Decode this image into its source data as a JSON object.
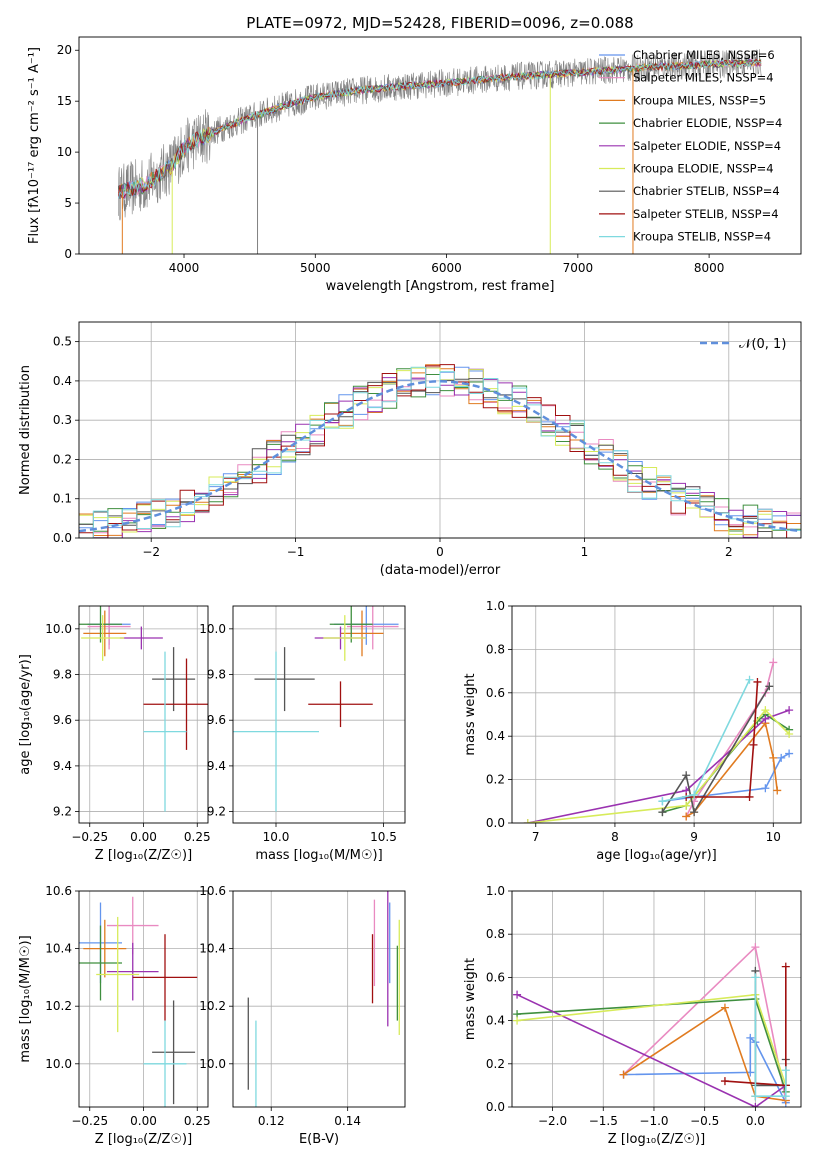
{
  "colors": {
    "chabrier_miles": "#6495ed",
    "salpeter_miles": "#e98ac1",
    "kroupa_miles": "#e07b20",
    "chabrier_elodie": "#3f8f3f",
    "salpeter_elodie": "#9a32b0",
    "kroupa_elodie": "#d7eb5a",
    "chabrier_stelib": "#555555",
    "salpeter_stelib": "#a01010",
    "kroupa_stelib": "#7fd9df",
    "data": "#808080",
    "gaussian": "#5f8fdc",
    "grid": "#b0b0b0"
  },
  "chart_data": [
    {
      "type": "line",
      "title": "PLATE=0972, MJD=52428, FIBERID=0096, z=0.088",
      "xlabel": "wavelength [Angstrom, rest frame]",
      "ylabel": "Flux [fλ10⁻¹⁷ erg cm⁻² s⁻¹ A⁻¹]",
      "xlim": [
        3200,
        8700
      ],
      "ylim": [
        0,
        21.3
      ],
      "xticks": [
        "4000",
        "5000",
        "6000",
        "7000",
        "8000"
      ],
      "yticks": [
        "0",
        "5",
        "10",
        "15",
        "20"
      ],
      "grid": false,
      "legend_position": "top-right",
      "series": [
        {
          "name": "Chabrier MILES, NSSP=6",
          "key": "chabrier_miles"
        },
        {
          "name": "Salpeter MILES, NSSP=4",
          "key": "salpeter_miles"
        },
        {
          "name": "Kroupa MILES, NSSP=5",
          "key": "kroupa_miles"
        },
        {
          "name": "Chabrier ELODIE, NSSP=4",
          "key": "chabrier_elodie"
        },
        {
          "name": "Salpeter ELODIE, NSSP=4",
          "key": "salpeter_elodie"
        },
        {
          "name": "Kroupa ELODIE, NSSP=4",
          "key": "kroupa_elodie"
        },
        {
          "name": "Chabrier STELIB, NSSP=4",
          "key": "chabrier_stelib"
        },
        {
          "name": "Salpeter STELIB, NSSP=4",
          "key": "salpeter_stelib"
        },
        {
          "name": "Kroupa STELIB, NSSP=4",
          "key": "kroupa_stelib"
        }
      ],
      "continuum": {
        "x": [
          3500,
          3700,
          3900,
          4000,
          4100,
          4300,
          4500,
          4800,
          5000,
          5300,
          5600,
          6000,
          6500,
          7000,
          7500,
          8000,
          8400
        ],
        "y": [
          6.0,
          6.8,
          8.6,
          10.4,
          11.2,
          12.4,
          13.4,
          14.7,
          15.4,
          16.0,
          16.4,
          16.8,
          17.4,
          17.8,
          18.3,
          18.6,
          18.8
        ]
      },
      "spikes": [
        {
          "x": 3530,
          "y": 0,
          "key": "kroupa_miles"
        },
        {
          "x": 3910,
          "y": 0,
          "key": "kroupa_elodie"
        },
        {
          "x": 4560,
          "y": 0,
          "key": "data"
        },
        {
          "x": 6790,
          "y": 0,
          "key": "kroupa_elodie"
        },
        {
          "x": 7420,
          "y": 0,
          "key": "kroupa_miles"
        }
      ]
    },
    {
      "type": "line",
      "xlabel": "(data-model)/error",
      "ylabel": "Normed distribution",
      "xlim": [
        -2.5,
        2.5
      ],
      "ylim": [
        0,
        0.55
      ],
      "xticks": [
        "−2",
        "−1",
        "0",
        "1",
        "2"
      ],
      "yticks": [
        "0.0",
        "0.1",
        "0.2",
        "0.3",
        "0.4",
        "0.5"
      ],
      "grid": true,
      "legend_position": "top-right",
      "legend_label": "𝒩(0, 1)",
      "gaussian": {
        "mean": 0,
        "sigma": 1
      },
      "bin_width": 0.1
    },
    {
      "type": "scatter",
      "xlabel": "Z [log₁₀(Z/Z☉)]",
      "ylabel": "age  [log₁₀(age/yr)]",
      "xlim": [
        -0.3,
        0.3
      ],
      "ylim": [
        9.15,
        10.1
      ],
      "xticks": [
        "−0.25",
        "0.00",
        "0.25"
      ],
      "yticks": [
        "9.2",
        "9.4",
        "9.6",
        "9.8",
        "10.0"
      ],
      "grid": true,
      "points": [
        {
          "key": "chabrier_miles",
          "x": -0.16,
          "y": 10.02,
          "xerr": 0.1,
          "yerr": 0.09
        },
        {
          "key": "salpeter_miles",
          "x": -0.16,
          "y": 10.01,
          "xerr": 0.1,
          "yerr": 0.1
        },
        {
          "key": "kroupa_miles",
          "x": -0.18,
          "y": 9.98,
          "xerr": 0.1,
          "yerr": 0.1
        },
        {
          "key": "chabrier_elodie",
          "x": -0.2,
          "y": 10.02,
          "xerr": 0.1,
          "yerr": 0.08
        },
        {
          "key": "salpeter_elodie",
          "x": -0.01,
          "y": 9.96,
          "xerr": 0.1,
          "yerr": 0.05
        },
        {
          "key": "kroupa_elodie",
          "x": -0.19,
          "y": 9.96,
          "xerr": 0.1,
          "yerr": 0.1
        },
        {
          "key": "chabrier_stelib",
          "x": 0.14,
          "y": 9.78,
          "xerr": 0.1,
          "yerr": 0.14
        },
        {
          "key": "salpeter_stelib",
          "x": 0.2,
          "y": 9.67,
          "xerr": 0.2,
          "yerr": 0.2
        },
        {
          "key": "kroupa_stelib",
          "x": 0.1,
          "y": 9.55,
          "xerr": 0.1,
          "yerr": 0.35
        }
      ]
    },
    {
      "type": "scatter",
      "xlabel": "mass [log₁₀(M/M☉)]",
      "xlim": [
        9.8,
        10.6
      ],
      "ylim": [
        9.15,
        10.1
      ],
      "xticks": [
        "10.0",
        "10.5"
      ],
      "yticks": [
        "9.2",
        "9.4",
        "9.6",
        "9.8",
        "10.0"
      ],
      "grid": true,
      "points": [
        {
          "key": "chabrier_miles",
          "x": 10.42,
          "y": 10.02,
          "xerr": 0.15,
          "yerr": 0.09
        },
        {
          "key": "salpeter_miles",
          "x": 10.45,
          "y": 10.01,
          "xerr": 0.12,
          "yerr": 0.1
        },
        {
          "key": "kroupa_miles",
          "x": 10.4,
          "y": 9.98,
          "xerr": 0.1,
          "yerr": 0.1
        },
        {
          "key": "chabrier_elodie",
          "x": 10.35,
          "y": 10.02,
          "xerr": 0.1,
          "yerr": 0.08
        },
        {
          "key": "salpeter_elodie",
          "x": 10.3,
          "y": 9.96,
          "xerr": 0.12,
          "yerr": 0.05
        },
        {
          "key": "kroupa_elodie",
          "x": 10.32,
          "y": 9.96,
          "xerr": 0.1,
          "yerr": 0.1
        },
        {
          "key": "chabrier_stelib",
          "x": 10.04,
          "y": 9.78,
          "xerr": 0.14,
          "yerr": 0.14
        },
        {
          "key": "salpeter_stelib",
          "x": 10.3,
          "y": 9.67,
          "xerr": 0.15,
          "yerr": 0.1
        },
        {
          "key": "kroupa_stelib",
          "x": 10.0,
          "y": 9.55,
          "xerr": 0.2,
          "yerr": 0.35
        }
      ]
    },
    {
      "type": "line",
      "xlabel": "age  [log₁₀(age/yr)]",
      "ylabel": "mass weight",
      "xlim": [
        6.7,
        10.35
      ],
      "ylim": [
        0,
        1.0
      ],
      "xticks": [
        "7",
        "8",
        "9",
        "10"
      ],
      "yticks": [
        "0.0",
        "0.2",
        "0.4",
        "0.6",
        "0.8",
        "1.0"
      ],
      "grid": true,
      "series": [
        {
          "key": "chabrier_miles",
          "x": [
            8.6,
            9.0,
            9.9,
            10.1,
            10.2
          ],
          "y": [
            0.1,
            0.12,
            0.16,
            0.3,
            0.32
          ]
        },
        {
          "key": "salpeter_miles",
          "x": [
            8.9,
            9.0,
            9.9,
            10.0
          ],
          "y": [
            0.03,
            0.1,
            0.6,
            0.74
          ]
        },
        {
          "key": "kroupa_miles",
          "x": [
            8.9,
            9.0,
            9.9,
            10.0,
            10.05
          ],
          "y": [
            0.03,
            0.05,
            0.46,
            0.3,
            0.15
          ]
        },
        {
          "key": "chabrier_elodie",
          "x": [
            8.6,
            8.9,
            9.8,
            9.9,
            10.2
          ],
          "y": [
            0.05,
            0.08,
            0.47,
            0.5,
            0.43
          ]
        },
        {
          "key": "salpeter_elodie",
          "x": [
            6.9,
            8.9,
            9.9,
            10.2
          ],
          "y": [
            0.0,
            0.15,
            0.48,
            0.52
          ]
        },
        {
          "key": "kroupa_elodie",
          "x": [
            6.9,
            8.9,
            9.9,
            10.2
          ],
          "y": [
            0.0,
            0.08,
            0.52,
            0.41
          ]
        },
        {
          "key": "chabrier_stelib",
          "x": [
            8.6,
            8.9,
            9.0,
            9.95
          ],
          "y": [
            0.05,
            0.22,
            0.05,
            0.63
          ]
        },
        {
          "key": "salpeter_stelib",
          "x": [
            8.9,
            9.7,
            9.75,
            9.8
          ],
          "y": [
            0.12,
            0.12,
            0.36,
            0.65
          ]
        },
        {
          "key": "kroupa_stelib",
          "x": [
            8.6,
            9.0,
            9.7
          ],
          "y": [
            0.1,
            0.13,
            0.66
          ]
        }
      ]
    },
    {
      "type": "scatter",
      "xlabel": "Z [log₁₀(Z/Z☉)]",
      "ylabel": "mass [log₁₀(M/M☉)]",
      "xlim": [
        -0.3,
        0.3
      ],
      "ylim": [
        9.85,
        10.6
      ],
      "xticks": [
        "−0.25",
        "0.00",
        "0.25"
      ],
      "yticks": [
        "10.0",
        "10.2",
        "10.4",
        "10.6"
      ],
      "grid": true,
      "points": [
        {
          "key": "chabrier_miles",
          "x": -0.2,
          "y": 10.42,
          "xerr": 0.1,
          "yerr": 0.14
        },
        {
          "key": "salpeter_miles",
          "x": -0.05,
          "y": 10.48,
          "xerr": 0.12,
          "yerr": 0.1
        },
        {
          "key": "kroupa_miles",
          "x": -0.18,
          "y": 10.4,
          "xerr": 0.1,
          "yerr": 0.1
        },
        {
          "key": "chabrier_elodie",
          "x": -0.2,
          "y": 10.35,
          "xerr": 0.1,
          "yerr": 0.13
        },
        {
          "key": "salpeter_elodie",
          "x": -0.05,
          "y": 10.32,
          "xerr": 0.12,
          "yerr": 0.1
        },
        {
          "key": "kroupa_elodie",
          "x": -0.12,
          "y": 10.31,
          "xerr": 0.1,
          "yerr": 0.2
        },
        {
          "key": "chabrier_stelib",
          "x": 0.14,
          "y": 10.04,
          "xerr": 0.1,
          "yerr": 0.18
        },
        {
          "key": "salpeter_stelib",
          "x": 0.1,
          "y": 10.3,
          "xerr": 0.15,
          "yerr": 0.15
        },
        {
          "key": "kroupa_stelib",
          "x": 0.1,
          "y": 10.0,
          "xerr": 0.1,
          "yerr": 0.15
        }
      ]
    },
    {
      "type": "scatter",
      "xlabel": "E(B-V)",
      "xlim": [
        0.11,
        0.155
      ],
      "ylim": [
        9.85,
        10.6
      ],
      "xticks": [
        "0.12",
        "0.14"
      ],
      "yticks": [
        "10.0",
        "10.2",
        "10.4",
        "10.6"
      ],
      "grid": true,
      "points": [
        {
          "key": "chabrier_stelib",
          "x": 0.114,
          "y": 10.07,
          "yerr": 0.16
        },
        {
          "key": "kroupa_stelib",
          "x": 0.116,
          "y": 10.0,
          "yerr": 0.15
        },
        {
          "key": "salpeter_stelib",
          "x": 0.1465,
          "y": 10.33,
          "yerr": 0.12
        },
        {
          "key": "salpeter_miles",
          "x": 0.147,
          "y": 10.42,
          "yerr": 0.15
        },
        {
          "key": "salpeter_elodie",
          "x": 0.1505,
          "y": 10.37,
          "yerr": 0.24
        },
        {
          "key": "chabrier_miles",
          "x": 0.151,
          "y": 10.42,
          "yerr": 0.14
        },
        {
          "key": "chabrier_elodie",
          "x": 0.153,
          "y": 10.28,
          "yerr": 0.13
        },
        {
          "key": "kroupa_elodie",
          "x": 0.1535,
          "y": 10.3,
          "yerr": 0.2
        }
      ]
    },
    {
      "type": "line",
      "xlabel": "Z [log₁₀(Z/Z☉)]",
      "ylabel": "mass weight",
      "xlim": [
        -2.4,
        0.45
      ],
      "ylim": [
        0,
        1.0
      ],
      "xticks": [
        "−2.0",
        "−1.5",
        "−1.0",
        "−0.5",
        "0.0"
      ],
      "yticks": [
        "0.0",
        "0.2",
        "0.4",
        "0.6",
        "0.8",
        "1.0"
      ],
      "grid": true,
      "series": [
        {
          "key": "chabrier_miles",
          "x": [
            -1.3,
            -0.05,
            -0.05,
            0.0,
            0.3
          ],
          "y": [
            0.15,
            0.16,
            0.32,
            0.3,
            0.02
          ]
        },
        {
          "key": "salpeter_miles",
          "x": [
            -1.3,
            0.0,
            0.3
          ],
          "y": [
            0.15,
            0.74,
            0.03
          ]
        },
        {
          "key": "kroupa_miles",
          "x": [
            -1.3,
            -0.3,
            0.0,
            0.3
          ],
          "y": [
            0.15,
            0.46,
            0.05,
            0.03
          ]
        },
        {
          "key": "chabrier_elodie",
          "x": [
            -2.35,
            0.0,
            0.3
          ],
          "y": [
            0.43,
            0.5,
            0.07
          ]
        },
        {
          "key": "salpeter_elodie",
          "x": [
            -2.35,
            0.0,
            0.3
          ],
          "y": [
            0.52,
            0.0,
            0.1
          ]
        },
        {
          "key": "kroupa_elodie",
          "x": [
            -2.35,
            0.0,
            0.3
          ],
          "y": [
            0.4,
            0.52,
            0.1
          ]
        },
        {
          "key": "chabrier_stelib",
          "x": [
            0.0,
            0.0,
            0.3,
            0.3
          ],
          "y": [
            0.63,
            0.1,
            0.1,
            0.22
          ]
        },
        {
          "key": "salpeter_stelib",
          "x": [
            -0.3,
            0.3,
            0.3
          ],
          "y": [
            0.12,
            0.1,
            0.65
          ]
        },
        {
          "key": "kroupa_stelib",
          "x": [
            0.0,
            0.0,
            0.3,
            0.3
          ],
          "y": [
            0.6,
            0.05,
            0.05,
            0.17
          ]
        }
      ]
    }
  ]
}
